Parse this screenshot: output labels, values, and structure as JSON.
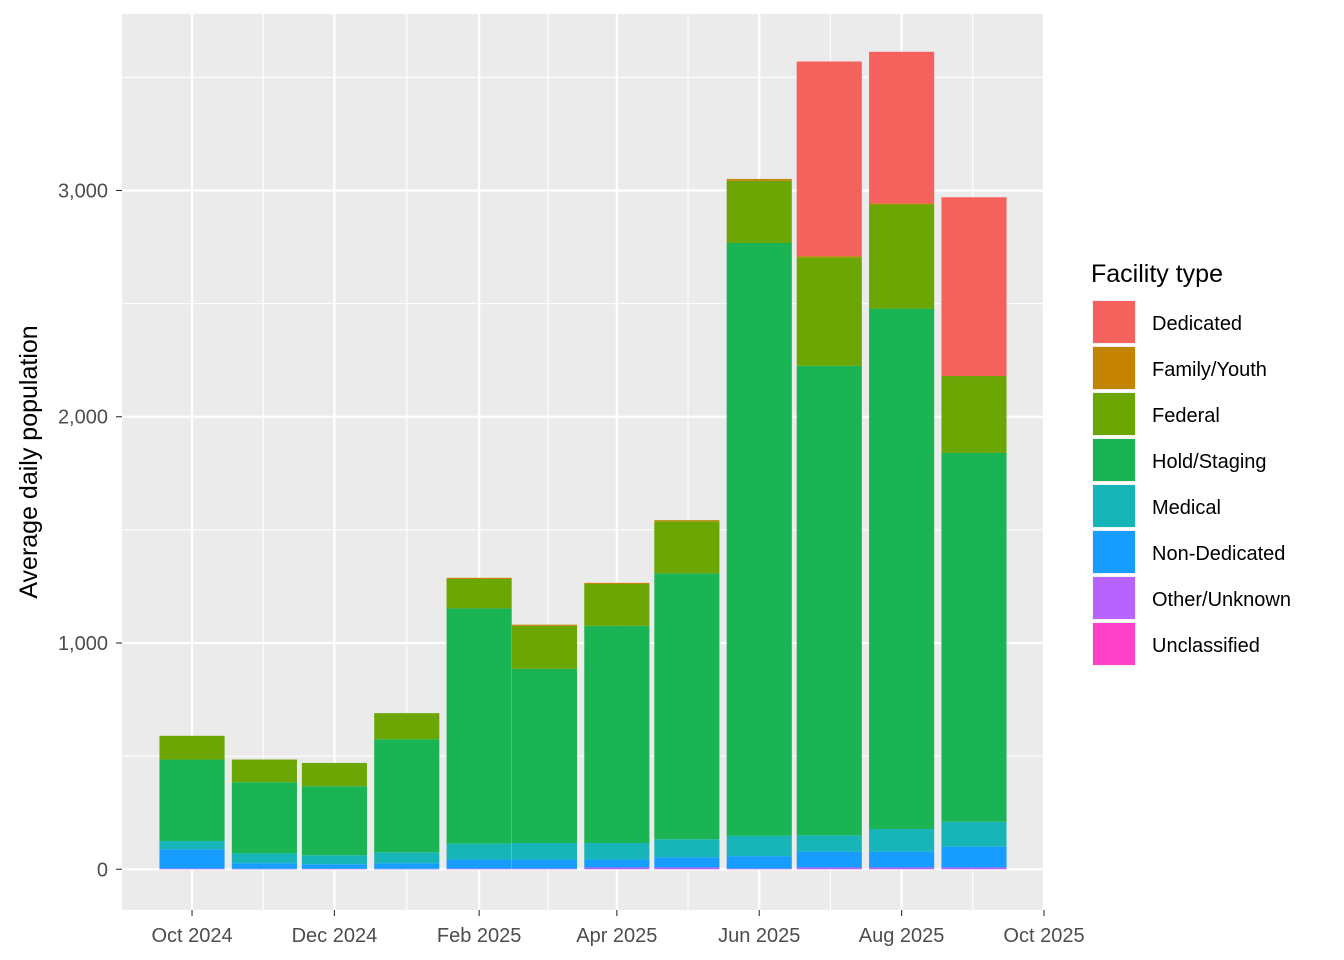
{
  "chart_data": {
    "type": "bar",
    "stacked": true,
    "title": "",
    "xlabel": "",
    "ylabel": "Average daily population",
    "x": [
      "2024-10",
      "2024-11",
      "2024-12",
      "2025-01",
      "2025-02",
      "2025-03",
      "2025-04",
      "2025-05",
      "2025-06",
      "2025-07",
      "2025-08",
      "2025-09"
    ],
    "x_range": [
      "2024-09-01",
      "2025-10-01"
    ],
    "x_ticks": [
      "2024-10-01",
      "2024-12-01",
      "2025-02-01",
      "2025-04-01",
      "2025-06-01",
      "2025-08-01",
      "2025-10-01"
    ],
    "x_tick_labels": [
      "Oct 2024",
      "Dec 2024",
      "Feb 2025",
      "Apr 2025",
      "Jun 2025",
      "Aug 2025",
      "Oct 2025"
    ],
    "ylim": [
      -180,
      3780
    ],
    "y_ticks": [
      0,
      1000,
      2000,
      3000
    ],
    "y_tick_labels": [
      "0",
      "1,000",
      "2,000",
      "3,000"
    ],
    "grid": true,
    "legend_title": "Facility type",
    "legend_position": "right",
    "series": [
      {
        "name": "Unclassified",
        "color": "#FF40C9",
        "values": [
          0,
          0,
          0,
          0,
          0,
          0,
          0,
          0,
          0,
          0,
          0,
          0
        ]
      },
      {
        "name": "Other/Unknown",
        "color": "#B863FF",
        "values": [
          3,
          2,
          2,
          2,
          3,
          3,
          8,
          8,
          3,
          8,
          8,
          8
        ]
      },
      {
        "name": "Non-Dedicated",
        "color": "#169DFF",
        "values": [
          85,
          25,
          20,
          25,
          40,
          40,
          35,
          45,
          55,
          70,
          70,
          92
        ]
      },
      {
        "name": "Medical",
        "color": "#18B5B8",
        "values": [
          37,
          43,
          40,
          48,
          70,
          73,
          73,
          80,
          90,
          72,
          100,
          110
        ]
      },
      {
        "name": "Hold/Staging",
        "color": "#1AB454",
        "values": [
          360,
          315,
          305,
          500,
          1040,
          770,
          960,
          1175,
          2620,
          2075,
          2300,
          1630
        ]
      },
      {
        "name": "Federal",
        "color": "#6BA604",
        "values": [
          105,
          100,
          103,
          115,
          130,
          190,
          185,
          230,
          275,
          480,
          460,
          340
        ]
      },
      {
        "name": "Family/Youth",
        "color": "#C48301",
        "values": [
          0,
          0,
          0,
          0,
          5,
          5,
          5,
          5,
          8,
          5,
          5,
          0
        ]
      },
      {
        "name": "Dedicated",
        "color": "#F5625D",
        "values": [
          0,
          0,
          0,
          0,
          0,
          0,
          0,
          0,
          0,
          860,
          670,
          790
        ]
      }
    ],
    "legend_order": [
      "Dedicated",
      "Family/Youth",
      "Federal",
      "Hold/Staging",
      "Medical",
      "Non-Dedicated",
      "Other/Unknown",
      "Unclassified"
    ],
    "colors": {
      "panel_background": "#EBEBEB",
      "grid": "#FFFFFF",
      "text": "#4D4D4D"
    }
  }
}
